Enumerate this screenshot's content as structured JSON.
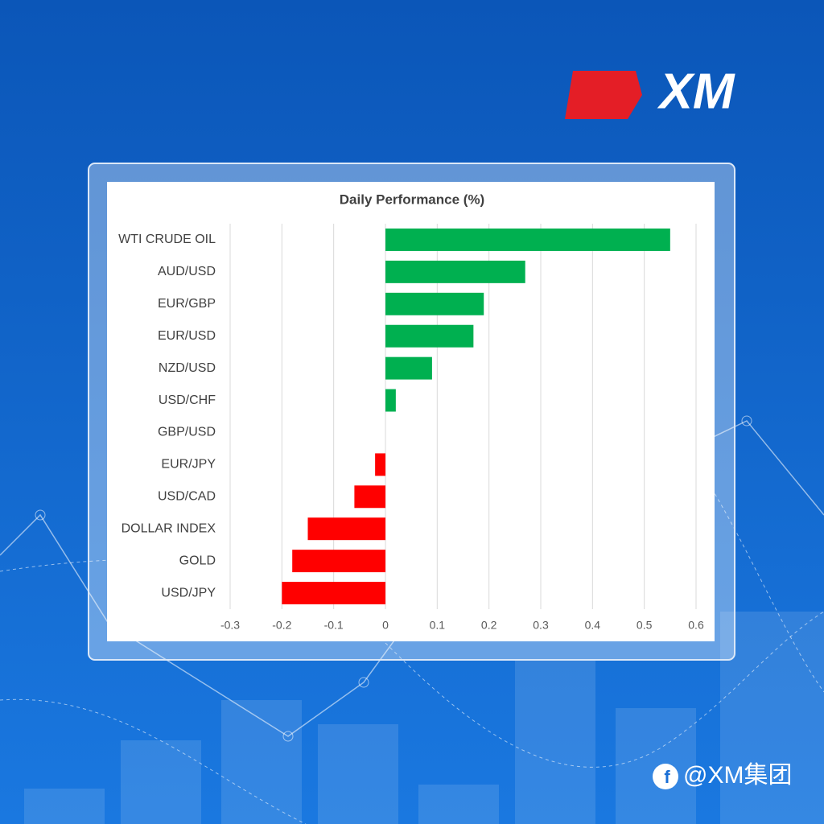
{
  "logo": "XM",
  "watermark": "@XM集团",
  "chart_data": {
    "type": "hbar",
    "title": "Daily Performance (%)",
    "categories": [
      "WTI CRUDE OIL",
      "AUD/USD",
      "EUR/GBP",
      "EUR/USD",
      "NZD/USD",
      "USD/CHF",
      "GBP/USD",
      "EUR/JPY",
      "USD/CAD",
      "DOLLAR INDEX",
      "GOLD",
      "USD/JPY"
    ],
    "values": [
      0.55,
      0.27,
      0.19,
      0.17,
      0.09,
      0.02,
      0,
      -0.02,
      -0.06,
      -0.15,
      -0.18,
      -0.2
    ],
    "color_positive": "#00b050",
    "color_negative": "#ff0000",
    "xlim": [
      -0.3,
      0.6
    ],
    "xticks": [
      -0.3,
      -0.2,
      -0.1,
      0,
      0.1,
      0.2,
      0.3,
      0.4,
      0.5,
      0.6
    ],
    "grid": true
  }
}
